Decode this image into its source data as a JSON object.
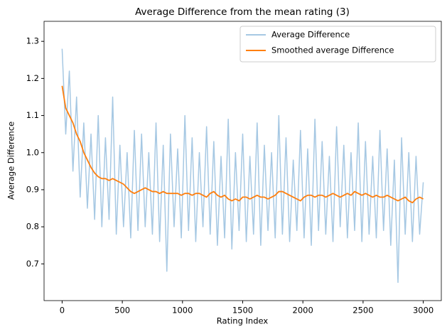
{
  "chart_data": {
    "type": "line",
    "title": "Average Difference from the mean rating (3)",
    "xlabel": "Rating Index",
    "ylabel": "Average Difference",
    "x": [
      0,
      30,
      60,
      90,
      120,
      150,
      180,
      210,
      240,
      270,
      300,
      330,
      360,
      390,
      420,
      450,
      480,
      510,
      540,
      570,
      600,
      630,
      660,
      690,
      720,
      750,
      780,
      810,
      840,
      870,
      900,
      930,
      960,
      990,
      1020,
      1050,
      1080,
      1110,
      1140,
      1170,
      1200,
      1230,
      1260,
      1290,
      1320,
      1350,
      1380,
      1410,
      1440,
      1470,
      1500,
      1530,
      1560,
      1590,
      1620,
      1650,
      1680,
      1710,
      1740,
      1770,
      1800,
      1830,
      1860,
      1890,
      1920,
      1950,
      1980,
      2010,
      2040,
      2070,
      2100,
      2130,
      2160,
      2190,
      2220,
      2250,
      2280,
      2310,
      2340,
      2370,
      2400,
      2430,
      2460,
      2490,
      2520,
      2550,
      2580,
      2610,
      2640,
      2670,
      2700,
      2730,
      2760,
      2790,
      2820,
      2850,
      2880,
      2910,
      2940,
      2970,
      3000
    ],
    "series": [
      {
        "name": "Average Difference",
        "color": "#a6c8e3",
        "values": [
          1.28,
          1.05,
          1.22,
          0.95,
          1.15,
          0.88,
          1.08,
          0.85,
          1.05,
          0.82,
          1.1,
          0.8,
          1.04,
          0.82,
          1.15,
          0.78,
          1.02,
          0.8,
          1.0,
          0.77,
          1.06,
          0.79,
          1.05,
          0.8,
          1.0,
          0.78,
          1.08,
          0.76,
          1.02,
          0.68,
          1.05,
          0.8,
          1.01,
          0.77,
          1.1,
          0.79,
          1.04,
          0.76,
          1.0,
          0.8,
          1.07,
          0.78,
          1.03,
          0.75,
          0.99,
          0.77,
          1.09,
          0.74,
          1.0,
          0.79,
          1.05,
          0.76,
          0.99,
          0.78,
          1.08,
          0.75,
          1.02,
          0.79,
          1.0,
          0.77,
          1.1,
          0.78,
          1.04,
          0.76,
          0.98,
          0.79,
          1.06,
          0.77,
          1.01,
          0.75,
          1.09,
          0.79,
          1.03,
          0.78,
          0.99,
          0.76,
          1.07,
          0.8,
          1.02,
          0.77,
          1.0,
          0.79,
          1.08,
          0.76,
          1.03,
          0.78,
          0.99,
          0.77,
          1.06,
          0.79,
          1.01,
          0.75,
          0.98,
          0.65,
          1.04,
          0.78,
          1.0,
          0.76,
          0.99,
          0.78,
          0.92
        ]
      },
      {
        "name": "Smoothed average Difference",
        "color": "#ff7f0e",
        "values": [
          1.18,
          1.12,
          1.1,
          1.08,
          1.05,
          1.03,
          1.0,
          0.98,
          0.96,
          0.945,
          0.935,
          0.93,
          0.93,
          0.925,
          0.93,
          0.925,
          0.92,
          0.915,
          0.905,
          0.895,
          0.89,
          0.895,
          0.9,
          0.905,
          0.9,
          0.895,
          0.895,
          0.89,
          0.895,
          0.89,
          0.89,
          0.89,
          0.89,
          0.885,
          0.89,
          0.89,
          0.885,
          0.89,
          0.89,
          0.885,
          0.88,
          0.89,
          0.895,
          0.885,
          0.88,
          0.885,
          0.875,
          0.87,
          0.875,
          0.87,
          0.88,
          0.88,
          0.875,
          0.88,
          0.885,
          0.88,
          0.88,
          0.875,
          0.88,
          0.885,
          0.895,
          0.895,
          0.89,
          0.885,
          0.88,
          0.875,
          0.87,
          0.88,
          0.885,
          0.885,
          0.88,
          0.885,
          0.885,
          0.88,
          0.885,
          0.89,
          0.885,
          0.88,
          0.885,
          0.89,
          0.885,
          0.895,
          0.89,
          0.885,
          0.89,
          0.885,
          0.88,
          0.885,
          0.88,
          0.88,
          0.885,
          0.88,
          0.875,
          0.87,
          0.875,
          0.88,
          0.87,
          0.865,
          0.875,
          0.88,
          0.875
        ]
      }
    ],
    "xlim": [
      -150,
      3150
    ],
    "ylim": [
      0.601,
      1.354
    ],
    "xticks": [
      0,
      500,
      1000,
      1500,
      2000,
      2500,
      3000
    ],
    "yticks": [
      0.7,
      0.8,
      0.9,
      {
        "value": 1,
        "label": "1.0"
      },
      1.1,
      1.2,
      1.3
    ],
    "legend": "upper right"
  }
}
